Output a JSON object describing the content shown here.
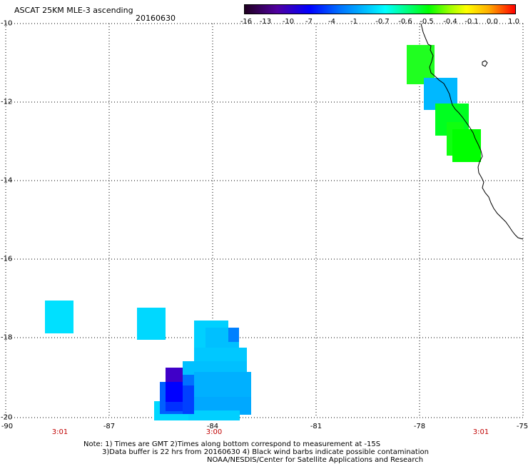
{
  "title": "ASCAT 25KM MLE-3 ascending",
  "date": "20160630",
  "colorbar": {
    "labels": [
      "-16",
      "-13",
      "-10",
      "-7",
      "-4",
      "-1",
      "-0.7",
      "-0.6",
      "-0.5",
      "-0.4",
      "-0.1",
      "0.0",
      "1.0"
    ]
  },
  "axes": {
    "lat_labels": [
      "-10",
      "-12",
      "-14",
      "-16",
      "-18",
      "-20"
    ],
    "lon_labels": [
      "-90",
      "-87",
      "-84",
      "-81",
      "-78",
      "-75"
    ]
  },
  "swath_times": [
    "3:01",
    "3:00",
    "3:01"
  ],
  "notes": [
    "Note: 1) Times are GMT 2)Times along bottom correspond to measurement at -15S",
    "3)Data buffer is 22 hrs from 20160630 4) Black wind barbs indicate possible contamination",
    "NOAA/NESDIS/Center for Satellite Applications and Research"
  ],
  "colors": {
    "cyan": "#00e0ff",
    "light_blue": "#00c8ff",
    "mid_blue": "#00a8ff",
    "blue": "#0050ff",
    "deep_blue": "#0000ff",
    "violet": "#4000c0",
    "green": "#00ff00",
    "bright_green": "#20ff20",
    "time_red": "#c00000"
  }
}
